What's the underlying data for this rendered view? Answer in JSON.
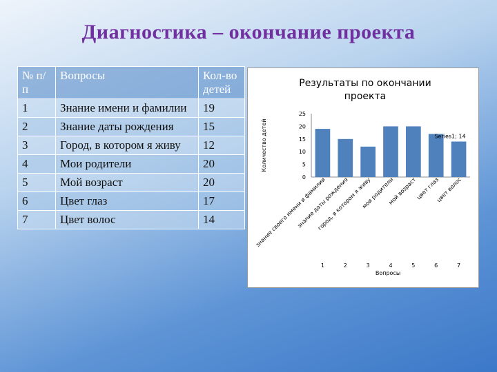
{
  "slide": {
    "title": "Диагностика – окончание проекта"
  },
  "table": {
    "headers": {
      "num": "№ п/п",
      "question": "Вопросы",
      "count": "Кол-во детей"
    },
    "rows": [
      {
        "num": "1",
        "question": "Знание имени и фамилии",
        "count": "19"
      },
      {
        "num": "2",
        "question": "Знание даты рождения",
        "count": "15"
      },
      {
        "num": "3",
        "question": "Город, в котором я живу",
        "count": "12"
      },
      {
        "num": "4",
        "question": "Мои родители",
        "count": "20"
      },
      {
        "num": "5",
        "question": "Мой возраст",
        "count": "20"
      },
      {
        "num": "6",
        "question": "Цвет глаз",
        "count": "17"
      },
      {
        "num": "7",
        "question": "Цвет волос",
        "count": "14"
      }
    ]
  },
  "chart_data": {
    "type": "bar",
    "title": "Результаты по окончании проекта",
    "xlabel": "Вопросы",
    "ylabel": "Количество детей",
    "categories": [
      "1",
      "2",
      "3",
      "4",
      "5",
      "6",
      "7"
    ],
    "category_labels": [
      "знание своего имени и фамилии",
      "знание даты рождения",
      "город, в котором я живу",
      "мои родители",
      "мой возраст",
      "цвет глаз",
      "цвет волос"
    ],
    "series": [
      {
        "values": [
          19,
          15,
          12,
          20,
          20,
          17,
          14
        ]
      }
    ],
    "data_label": "Series1; 14",
    "ylim": [
      0,
      25
    ],
    "yticks": [
      0,
      5,
      10,
      15,
      20,
      25
    ],
    "bar_color": "#4f81bd",
    "grid": false
  }
}
